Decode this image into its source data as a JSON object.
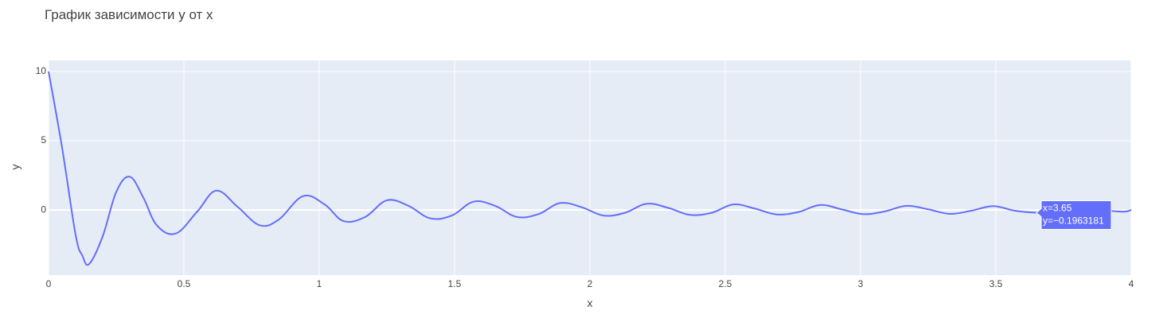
{
  "chart_data": {
    "type": "line",
    "title": "График зависимости y от x",
    "xlabel": "x",
    "ylabel": "y",
    "xlim": [
      0,
      4
    ],
    "ylim": [
      -4.7,
      10.8
    ],
    "grid": true,
    "x_ticks": [
      0,
      0.5,
      1,
      1.5,
      2,
      2.5,
      3,
      3.5,
      4
    ],
    "x_tick_labels": [
      "0",
      "0.5",
      "1",
      "1.5",
      "2",
      "2.5",
      "3",
      "3.5",
      "4"
    ],
    "y_ticks": [
      0,
      5,
      10
    ],
    "y_tick_labels": [
      "0",
      "5",
      "10"
    ],
    "series": [
      {
        "color": "#636efa",
        "x": [
          0,
          0.05,
          0.1,
          0.125,
          0.15,
          0.2,
          0.25,
          0.3,
          0.35,
          0.4,
          0.47,
          0.55,
          0.62,
          0.7,
          0.78,
          0.85,
          0.94,
          1.02,
          1.09,
          1.17,
          1.25,
          1.33,
          1.41,
          1.49,
          1.57,
          1.65,
          1.73,
          1.81,
          1.89,
          1.97,
          2.05,
          2.13,
          2.21,
          2.29,
          2.37,
          2.45,
          2.53,
          2.61,
          2.69,
          2.77,
          2.85,
          2.93,
          3.01,
          3.09,
          3.17,
          3.25,
          3.33,
          3.41,
          3.49,
          3.57,
          3.65,
          3.73,
          3.81,
          3.89,
          3.97,
          4
        ],
        "y": [
          10,
          4.5,
          -1.8,
          -3.3,
          -3.9,
          -1.9,
          1.3,
          2.4,
          0.9,
          -1.1,
          -1.7,
          -0.1,
          1.4,
          0.2,
          -1.1,
          -0.7,
          1.0,
          0.4,
          -0.8,
          -0.5,
          0.7,
          0.3,
          -0.6,
          -0.4,
          0.6,
          0.3,
          -0.5,
          -0.3,
          0.5,
          0.2,
          -0.4,
          -0.2,
          0.45,
          0.15,
          -0.35,
          -0.2,
          0.4,
          0.1,
          -0.32,
          -0.15,
          0.36,
          0.05,
          -0.3,
          -0.1,
          0.3,
          0.05,
          -0.28,
          -0.05,
          0.28,
          -0.05,
          -0.1963181,
          -0.22,
          0.15,
          0.0,
          -0.12,
          0.0
        ]
      }
    ],
    "hover": {
      "x": 3.65,
      "y": -0.1963181,
      "line1": "x=3.65",
      "line2": "y=−0.1963181"
    }
  }
}
